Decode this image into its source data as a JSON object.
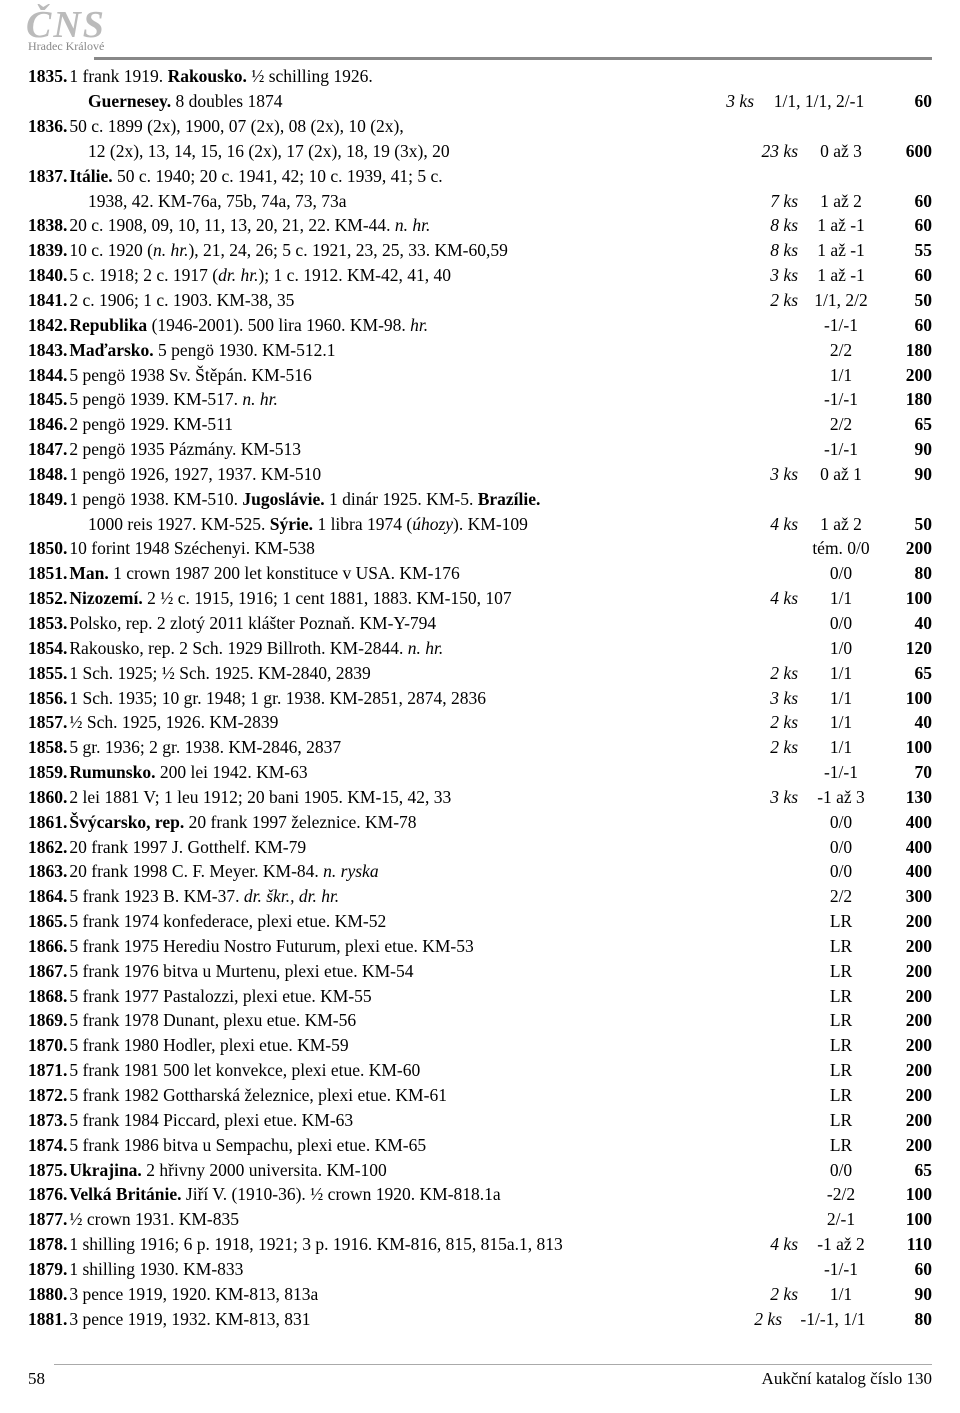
{
  "header": {
    "logo": "ČNS",
    "sub": "Hradec Králové"
  },
  "footer": {
    "page": "58",
    "caption": "Aukční katalog číslo 130"
  },
  "rows": [
    {
      "n": "1835",
      "d": "1 frank 1919. <b>Rakousko.</b> ½ schilling 1926.",
      "ks": "",
      "g": "",
      "p": ""
    },
    {
      "n": "",
      "d": "<b>Guernesey.</b> 8 doubles 1874",
      "ks": "3 ks",
      "g": "1/1, 1/1, 2/-1",
      "p": "60",
      "indent": true,
      "gw": 118
    },
    {
      "n": "1836",
      "d": "50 c. 1899 (2x), 1900, 07 (2x), 08 (2x), 10 (2x),",
      "ks": "",
      "g": "",
      "p": ""
    },
    {
      "n": "",
      "d": "12 (2x), 13, 14, 15, 16 (2x), 17 (2x), 18, 19 (3x), 20",
      "ks": "23 ks",
      "g": "0 až 3",
      "p": "600",
      "indent": true
    },
    {
      "n": "1837",
      "d": "<b>Itálie.</b> 50 c. 1940; 20 c. 1941, 42; 10 c. 1939, 41; 5 c.",
      "ks": "",
      "g": "",
      "p": ""
    },
    {
      "n": "",
      "d": "1938, 42. KM-76a, 75b, 74a, 73, 73a",
      "ks": "7 ks",
      "g": "1 až 2",
      "p": "60",
      "indent": true
    },
    {
      "n": "1838",
      "d": "20 c. 1908, 09, 10, 11, 13, 20, 21, 22. KM-44. <i>n. hr.</i>",
      "ks": "8 ks",
      "g": "1 až -1",
      "p": "60"
    },
    {
      "n": "1839",
      "d": "10 c. 1920 (<i>n. hr.</i>), 21, 24, 26; 5 c. 1921, 23, 25, 33. KM-60,59",
      "ks": "8 ks",
      "g": "1 až -1",
      "p": "55"
    },
    {
      "n": "1840",
      "d": "5 c. 1918; 2 c. 1917 (<i>dr. hr.</i>); 1 c. 1912. KM-42, 41, 40",
      "ks": "3 ks",
      "g": "1 až -1",
      "p": "60"
    },
    {
      "n": "1841",
      "d": "2 c. 1906; 1 c. 1903. KM-38, 35",
      "ks": "2 ks",
      "g": "1/1, 2/2",
      "p": "50"
    },
    {
      "n": "1842",
      "d": "<b>Republika</b> (1946-2001). 500 lira 1960. KM-98. <i>hr.</i>",
      "ks": "",
      "g": "-1/-1",
      "p": "60"
    },
    {
      "n": "1843",
      "d": "<b>Maďarsko.</b> 5 pengö 1930. KM-512.1",
      "ks": "",
      "g": "2/2",
      "p": "180"
    },
    {
      "n": "1844",
      "d": "5 pengö 1938 Sv. Štěpán. KM-516",
      "ks": "",
      "g": "1/1",
      "p": "200"
    },
    {
      "n": "1845",
      "d": "5 pengö 1939. KM-517. <i>n. hr.</i>",
      "ks": "",
      "g": "-1/-1",
      "p": "180"
    },
    {
      "n": "1846",
      "d": "2 pengö 1929. KM-511",
      "ks": "",
      "g": "2/2",
      "p": "65"
    },
    {
      "n": "1847",
      "d": "2 pengö 1935 Pázmány. KM-513",
      "ks": "",
      "g": "-1/-1",
      "p": "90"
    },
    {
      "n": "1848",
      "d": "1 pengö 1926, 1927, 1937. KM-510",
      "ks": "3 ks",
      "g": "0 až 1",
      "p": "90"
    },
    {
      "n": "1849",
      "d": "1 pengö 1938. KM-510. <b>Jugoslávie.</b> 1 dinár 1925. KM-5. <b>Brazílie.</b>",
      "ks": "",
      "g": "",
      "p": ""
    },
    {
      "n": "",
      "d": "1000 reis 1927. KM-525. <b>Sýrie.</b> 1 libra 1974 (<i>úhozy</i>). KM-109",
      "ks": "4 ks",
      "g": "1 až 2",
      "p": "50",
      "indent": true
    },
    {
      "n": "1850",
      "d": "10 forint 1948 Széchenyi. KM-538",
      "ks": "",
      "g": "tém. 0/0",
      "p": "200"
    },
    {
      "n": "1851",
      "d": "<b>Man.</b> 1 crown 1987 200 let konstituce v USA. KM-176",
      "ks": "",
      "g": "0/0",
      "p": "80"
    },
    {
      "n": "1852",
      "d": "<b>Nizozemí.</b> 2 ½ c. 1915, 1916; 1 cent 1881, 1883. KM-150, 107",
      "ks": "4 ks",
      "g": "1/1",
      "p": "100"
    },
    {
      "n": "1853",
      "d": "Polsko, rep. 2 zlotý 2011 klášter Poznaň. KM-Y-794",
      "ks": "",
      "g": "0/0",
      "p": "40"
    },
    {
      "n": "1854",
      "d": "Rakousko, rep. 2 Sch. 1929 Billroth. KM-2844. <i>n. hr.</i>",
      "ks": "",
      "g": "1/0",
      "p": "120"
    },
    {
      "n": "1855",
      "d": "1 Sch. 1925; ½ Sch. 1925. KM-2840, 2839",
      "ks": "2 ks",
      "g": "1/1",
      "p": "65"
    },
    {
      "n": "1856",
      "d": "1 Sch. 1935; 10 gr. 1948; 1 gr. 1938. KM-2851, 2874, 2836",
      "ks": "3 ks",
      "g": "1/1",
      "p": "100"
    },
    {
      "n": "1857",
      "d": "½ Sch. 1925, 1926. KM-2839",
      "ks": "2 ks",
      "g": "1/1",
      "p": "40"
    },
    {
      "n": "1858",
      "d": "5 gr. 1936; 2 gr. 1938. KM-2846, 2837",
      "ks": "2 ks",
      "g": "1/1",
      "p": "100"
    },
    {
      "n": "1859",
      "d": "<b>Rumunsko.</b> 200 lei 1942. KM-63",
      "ks": "",
      "g": "-1/-1",
      "p": "70"
    },
    {
      "n": "1860",
      "d": "2 lei 1881 V; 1 leu 1912; 20 bani 1905. KM-15, 42, 33",
      "ks": "3 ks",
      "g": "-1 až 3",
      "p": "130"
    },
    {
      "n": "1861",
      "d": "<b>Švýcarsko, rep.</b> 20 frank 1997 železnice. KM-78",
      "ks": "",
      "g": "0/0",
      "p": "400"
    },
    {
      "n": "1862",
      "d": "20 frank 1997 J. Gotthelf. KM-79",
      "ks": "",
      "g": "0/0",
      "p": "400"
    },
    {
      "n": "1863",
      "d": "20 frank 1998 C. F. Meyer. KM-84. <i>n. ryska</i>",
      "ks": "",
      "g": "0/0",
      "p": "400"
    },
    {
      "n": "1864",
      "d": "5 frank 1923 B. KM-37. <i>dr. škr., dr. hr.</i>",
      "ks": "",
      "g": "2/2",
      "p": "300"
    },
    {
      "n": "1865",
      "d": "5 frank 1974 konfederace, plexi etue. KM-52",
      "ks": "",
      "g": "LR",
      "p": "200"
    },
    {
      "n": "1866",
      "d": "5 frank 1975 Herediu Nostro Futurum, plexi etue. KM-53",
      "ks": "",
      "g": "LR",
      "p": "200"
    },
    {
      "n": "1867",
      "d": "5 frank 1976 bitva u Murtenu, plexi etue. KM-54",
      "ks": "",
      "g": "LR",
      "p": "200"
    },
    {
      "n": "1868",
      "d": "5 frank 1977 Pastalozzi, plexi etue. KM-55",
      "ks": "",
      "g": "LR",
      "p": "200"
    },
    {
      "n": "1869",
      "d": "5 frank 1978 Dunant, plexu etue. KM-56",
      "ks": "",
      "g": "LR",
      "p": "200"
    },
    {
      "n": "1870",
      "d": "5 frank 1980 Hodler, plexi etue. KM-59",
      "ks": "",
      "g": "LR",
      "p": "200"
    },
    {
      "n": "1871",
      "d": "5 frank 1981 500 let konvekce, plexi etue. KM-60",
      "ks": "",
      "g": "LR",
      "p": "200"
    },
    {
      "n": "1872",
      "d": "5 frank 1982 Gottharská železnice, plexi etue. KM-61",
      "ks": "",
      "g": "LR",
      "p": "200"
    },
    {
      "n": "1873",
      "d": "5 frank 1984 Piccard, plexi etue. KM-63",
      "ks": "",
      "g": "LR",
      "p": "200"
    },
    {
      "n": "1874",
      "d": "5 frank 1986 bitva u Sempachu, plexi etue. KM-65",
      "ks": "",
      "g": "LR",
      "p": "200"
    },
    {
      "n": "1875",
      "d": "<b>Ukrajina.</b> 2 hřivny 2000 universita. KM-100",
      "ks": "",
      "g": "0/0",
      "p": "65"
    },
    {
      "n": "1876",
      "d": "<b>Velká Británie.</b> Jiří V. (1910-36). ½ crown 1920. KM-818.1a",
      "ks": "",
      "g": "-2/2",
      "p": "100"
    },
    {
      "n": "1877",
      "d": "½ crown 1931. KM-835",
      "ks": "",
      "g": "2/-1",
      "p": "100"
    },
    {
      "n": "1878",
      "d": "1 shilling 1916; 6 p. 1918, 1921; 3 p. 1916. KM-816, 815, 815a.1, 813",
      "ks": "4 ks",
      "g": "-1 až 2",
      "p": "110"
    },
    {
      "n": "1879",
      "d": "1 shilling 1930. KM-833",
      "ks": "",
      "g": "-1/-1",
      "p": "60"
    },
    {
      "n": "1880",
      "d": "3 pence 1919, 1920. KM-813, 813a",
      "ks": "2 ks",
      "g": "1/1",
      "p": "90"
    },
    {
      "n": "1881",
      "d": "3 pence 1919, 1932. KM-813, 831",
      "ks": "2 ks",
      "g": "-1/-1, 1/1",
      "p": "80",
      "gw": 90
    }
  ]
}
